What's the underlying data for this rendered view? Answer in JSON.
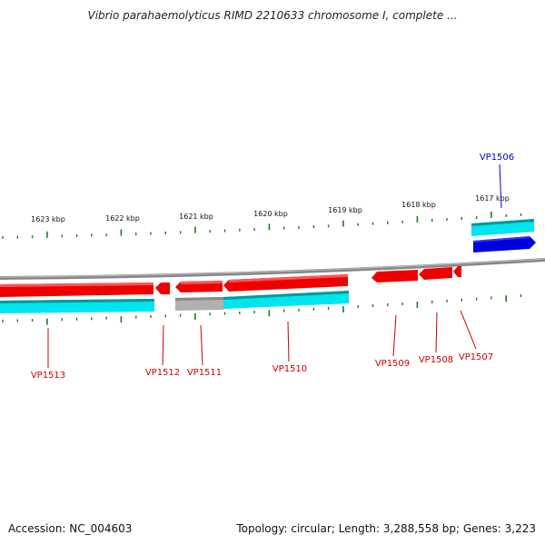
{
  "title": "Vibrio parahaemolyticus RIMD 2210633 chromosome I, complete ...",
  "ruler": {
    "tick_labels": [
      "1623 kbp",
      "1622 kbp",
      "1621 kbp",
      "1620 kbp",
      "1619 kbp",
      "1618 kbp",
      "1617 kbp"
    ]
  },
  "genes": [
    {
      "label": "VP1506",
      "color": "#0000cc"
    },
    {
      "label": "VP1507",
      "color": "#cc0000"
    },
    {
      "label": "VP1508",
      "color": "#cc0000"
    },
    {
      "label": "VP1509",
      "color": "#cc0000"
    },
    {
      "label": "VP1510",
      "color": "#cc0000"
    },
    {
      "label": "VP1511",
      "color": "#cc0000"
    },
    {
      "label": "VP1512",
      "color": "#cc0000"
    },
    {
      "label": "VP1513",
      "color": "#cc0000"
    }
  ],
  "colors": {
    "ruler_tick": "#227722",
    "backbone": "#888888",
    "gene_red": "#ee0000",
    "gene_blue": "#0000dd",
    "feature_cyan": "#00e5ee",
    "feature_gray": "#b0b0b0"
  },
  "footer": {
    "accession": "Accession: NC_004603",
    "summary": "Topology: circular; Length: 3,288,558 bp; Genes: 3,223"
  }
}
